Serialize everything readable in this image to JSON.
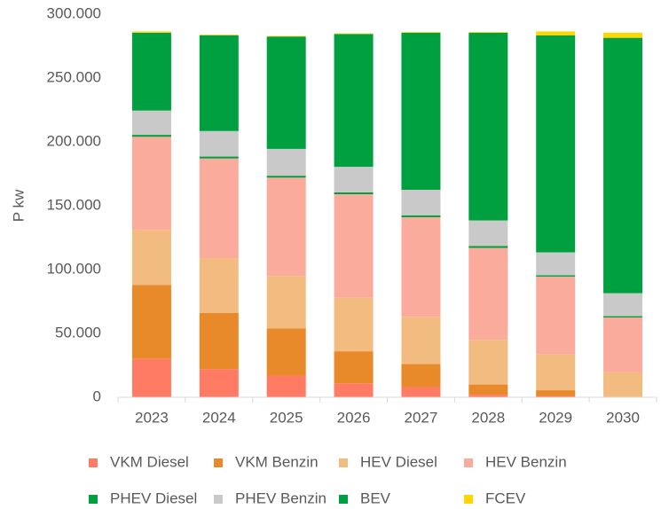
{
  "chart_data": {
    "type": "stacked_bar",
    "y_label": "P kw",
    "categories": [
      "2023",
      "2024",
      "2025",
      "2026",
      "2027",
      "2028",
      "2029",
      "2030"
    ],
    "series": [
      {
        "name": "VKM Diesel",
        "color": "#ff7b64",
        "values": [
          30000,
          22000,
          17000,
          11000,
          8000,
          2000,
          1000,
          0
        ]
      },
      {
        "name": "VKM Benzin",
        "color": "#e8892a",
        "values": [
          58000,
          44000,
          37000,
          25000,
          18000,
          8000,
          4500,
          500
        ]
      },
      {
        "name": "HEV Diesel",
        "color": "#f2bb80",
        "values": [
          43000,
          43000,
          41000,
          42000,
          37000,
          35000,
          28000,
          19000
        ]
      },
      {
        "name": "HEV Benzin",
        "color": "#fbab9c",
        "values": [
          73000,
          78000,
          77000,
          81000,
          78000,
          72000,
          61000,
          43000
        ]
      },
      {
        "name": "PHEV Diesel",
        "color": "#00a040",
        "values": [
          1500,
          1500,
          1500,
          1500,
          1500,
          1500,
          1000,
          1000
        ]
      },
      {
        "name": "PHEV Benzin",
        "color": "#c9c9c9",
        "values": [
          19000,
          20000,
          21000,
          20000,
          20000,
          20000,
          18000,
          18000
        ]
      },
      {
        "name": "BEV",
        "color": "#00a040",
        "values": [
          61000,
          75000,
          88000,
          104000,
          123000,
          147000,
          170000,
          200000
        ]
      },
      {
        "name": "FCEV",
        "color": "#ffd700",
        "values": [
          1000,
          500,
          500,
          500,
          500,
          500,
          3000,
          4000
        ]
      }
    ],
    "ylim": [
      0,
      300000
    ],
    "yticks": [
      0,
      {
        "value": 50000,
        "label": "50.000"
      },
      {
        "value": 100000,
        "label": "100.000"
      },
      {
        "value": 150000,
        "label": "150.000"
      },
      {
        "value": 200000,
        "label": "200.000"
      },
      {
        "value": 250000,
        "label": "250.000"
      },
      {
        "value": 300000,
        "label": "300.000"
      }
    ],
    "grid": false
  }
}
